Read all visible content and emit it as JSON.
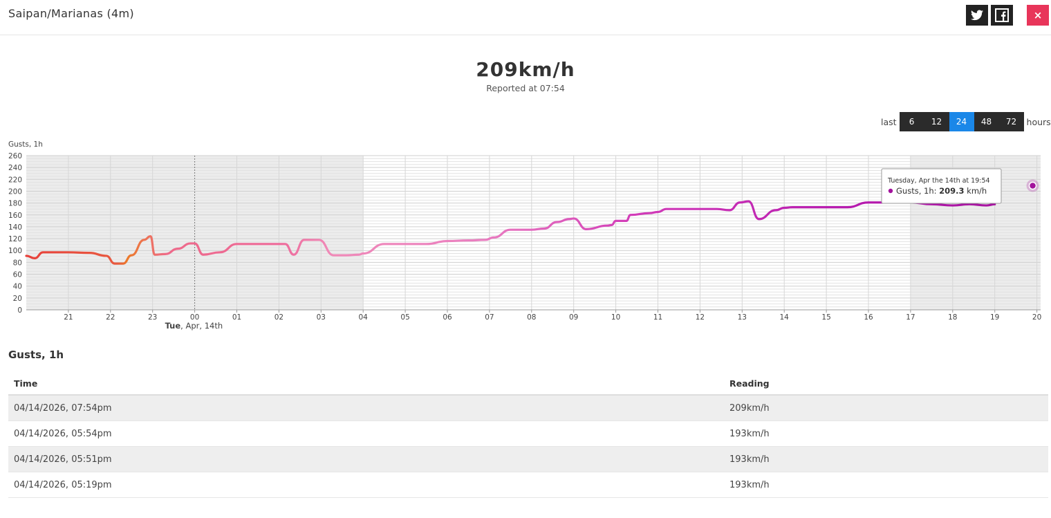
{
  "header": {
    "title": "Saipan/Marianas (4m)",
    "close_label": "×"
  },
  "current": {
    "value": "209km/h",
    "reported": "Reported at 07:54"
  },
  "hours": {
    "prefix": "last",
    "suffix": "hours",
    "options": [
      "6",
      "12",
      "24",
      "48",
      "72"
    ],
    "selected": "24"
  },
  "chart_data": {
    "type": "line",
    "ylabel": "Gusts, 1h",
    "ylim": [
      0,
      260
    ],
    "yticks": [
      0,
      20,
      40,
      60,
      80,
      100,
      120,
      140,
      160,
      180,
      200,
      220,
      240,
      260
    ],
    "xticks": [
      "21",
      "22",
      "23",
      "00",
      "01",
      "02",
      "03",
      "04",
      "05",
      "06",
      "07",
      "08",
      "09",
      "10",
      "11",
      "12",
      "13",
      "14",
      "15",
      "16",
      "17",
      "18",
      "19",
      "20"
    ],
    "date_label_bold": "Tue",
    "date_label_rest": ", Apr, 14th",
    "x_hours": [
      20.0,
      20.2,
      20.4,
      21,
      21.5,
      21.9,
      22.1,
      22.3,
      22.5,
      22.8,
      22.95,
      23.05,
      23.3,
      23.6,
      23.9,
      24.0,
      24.2,
      24.6,
      25.0,
      25.5,
      25.95,
      26.15,
      26.35,
      26.6,
      26.9,
      26.95,
      27.3,
      27.6,
      27.9,
      28.0,
      28.5,
      29.0,
      29.5,
      30.0,
      30.5,
      30.9,
      31.1,
      31.5,
      32.0,
      32.3,
      32.6,
      32.9,
      33.0,
      33.3,
      33.8,
      33.9,
      34.0,
      34.25,
      34.35,
      34.8,
      35.0,
      35.2,
      35.6,
      36.0,
      36.4,
      36.7,
      36.95,
      37.15,
      37.4,
      37.8,
      38.0,
      38.2,
      38.6,
      39.0,
      39.5,
      40.0,
      40.6,
      41.0,
      41.5,
      42.0,
      42.4,
      42.8,
      43.0
    ],
    "y_kmh": [
      91,
      87,
      97,
      97,
      96,
      91,
      78,
      78,
      92,
      118,
      124,
      93,
      94,
      103,
      112,
      112,
      93,
      97,
      111,
      111,
      111,
      111,
      93,
      118,
      118,
      118,
      92,
      92,
      93,
      95,
      111,
      111,
      111,
      116,
      117,
      118,
      122,
      135,
      135,
      137,
      148,
      153,
      154,
      136,
      142,
      143,
      150,
      150,
      160,
      163,
      165,
      170,
      170,
      170,
      170,
      168,
      181,
      183,
      153,
      168,
      172,
      173,
      173,
      173,
      173,
      181,
      181,
      181,
      178,
      176,
      178,
      176,
      178
    ],
    "tooltip": {
      "title": "Tuesday, Apr the 14th at 19:54",
      "series": "Gusts, 1h: ",
      "value": "209.3",
      "unit": " km/h"
    },
    "highlight_point": {
      "x_hour": 43.9,
      "y_kmh": 209.3
    }
  },
  "table": {
    "title": "Gusts, 1h",
    "columns": [
      "Time",
      "Reading"
    ],
    "rows": [
      [
        "04/14/2026, 07:54pm",
        "209km/h"
      ],
      [
        "04/14/2026, 05:54pm",
        "193km/h"
      ],
      [
        "04/14/2026, 05:51pm",
        "193km/h"
      ],
      [
        "04/14/2026, 05:19pm",
        "193km/h"
      ]
    ]
  }
}
